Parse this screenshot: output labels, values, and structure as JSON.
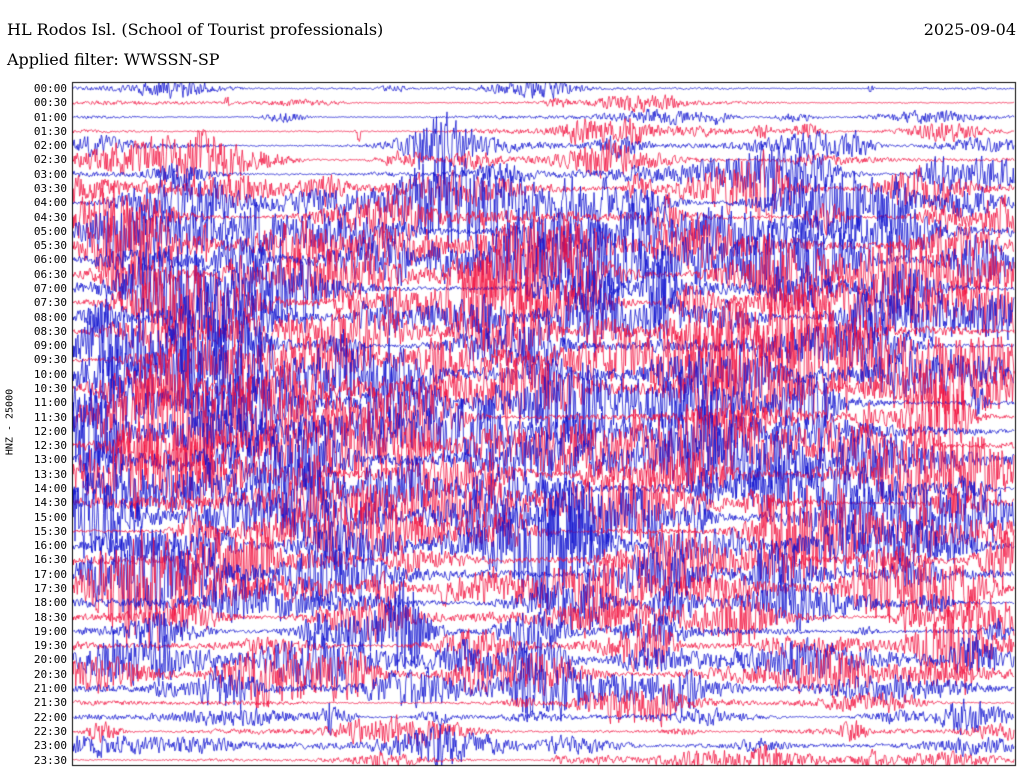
{
  "header": {
    "station": "HL Rodos Isl. (School of Tourist professionals)",
    "date": "2025-09-04",
    "filter": "Applied filter: WWSSN-SP"
  },
  "axis": {
    "scale_label": "HNZ - 25000"
  },
  "chart_data": {
    "type": "helicorder",
    "title": "HL Rodos Isl. (School of Tourist professionals)",
    "date": "2025-09-04",
    "channel": "HNZ",
    "scale": 25000,
    "filter": "WWSSN-SP",
    "minutes_per_line": 30,
    "legend": "none",
    "grid": false,
    "trace_colors": {
      "blue": "#0d10cf",
      "red": "#f2113f"
    },
    "rows": [
      {
        "time": "00:00",
        "color": "blue",
        "activity": 0.1
      },
      {
        "time": "00:30",
        "color": "red",
        "activity": 0.1
      },
      {
        "time": "01:00",
        "color": "blue",
        "activity": 0.09
      },
      {
        "time": "01:30",
        "color": "red",
        "activity": 0.14
      },
      {
        "time": "02:00",
        "color": "blue",
        "activity": 0.22
      },
      {
        "time": "02:30",
        "color": "red",
        "activity": 0.27
      },
      {
        "time": "03:00",
        "color": "blue",
        "activity": 0.3
      },
      {
        "time": "03:30",
        "color": "red",
        "activity": 0.42
      },
      {
        "time": "04:00",
        "color": "blue",
        "activity": 0.52
      },
      {
        "time": "04:30",
        "color": "red",
        "activity": 0.52
      },
      {
        "time": "05:00",
        "color": "blue",
        "activity": 0.62
      },
      {
        "time": "05:30",
        "color": "red",
        "activity": 0.68
      },
      {
        "time": "06:00",
        "color": "blue",
        "activity": 0.73
      },
      {
        "time": "06:30",
        "color": "red",
        "activity": 0.74
      },
      {
        "time": "07:00",
        "color": "blue",
        "activity": 0.78
      },
      {
        "time": "07:30",
        "color": "red",
        "activity": 0.72
      },
      {
        "time": "08:00",
        "color": "blue",
        "activity": 0.66
      },
      {
        "time": "08:30",
        "color": "red",
        "activity": 0.62
      },
      {
        "time": "09:00",
        "color": "blue",
        "activity": 0.66
      },
      {
        "time": "09:30",
        "color": "red",
        "activity": 0.72
      },
      {
        "time": "10:00",
        "color": "blue",
        "activity": 0.72
      },
      {
        "time": "10:30",
        "color": "red",
        "activity": 0.7
      },
      {
        "time": "11:00",
        "color": "blue",
        "activity": 0.72
      },
      {
        "time": "11:30",
        "color": "red",
        "activity": 0.76
      },
      {
        "time": "12:00",
        "color": "blue",
        "activity": 0.72
      },
      {
        "time": "12:30",
        "color": "red",
        "activity": 0.66
      },
      {
        "time": "13:00",
        "color": "blue",
        "activity": 0.62
      },
      {
        "time": "13:30",
        "color": "red",
        "activity": 0.62
      },
      {
        "time": "14:00",
        "color": "blue",
        "activity": 0.62
      },
      {
        "time": "14:30",
        "color": "red",
        "activity": 0.6
      },
      {
        "time": "15:00",
        "color": "blue",
        "activity": 0.58
      },
      {
        "time": "15:30",
        "color": "red",
        "activity": 0.56
      },
      {
        "time": "16:00",
        "color": "blue",
        "activity": 0.56
      },
      {
        "time": "16:30",
        "color": "red",
        "activity": 0.52
      },
      {
        "time": "17:00",
        "color": "blue",
        "activity": 0.52
      },
      {
        "time": "17:30",
        "color": "red",
        "activity": 0.56
      },
      {
        "time": "18:00",
        "color": "blue",
        "activity": 0.5
      },
      {
        "time": "18:30",
        "color": "red",
        "activity": 0.46
      },
      {
        "time": "19:00",
        "color": "blue",
        "activity": 0.42
      },
      {
        "time": "19:30",
        "color": "red",
        "activity": 0.46
      },
      {
        "time": "20:00",
        "color": "blue",
        "activity": 0.46
      },
      {
        "time": "20:30",
        "color": "red",
        "activity": 0.42
      },
      {
        "time": "21:00",
        "color": "blue",
        "activity": 0.36
      },
      {
        "time": "21:30",
        "color": "red",
        "activity": 0.26
      },
      {
        "time": "22:00",
        "color": "blue",
        "activity": 0.22
      },
      {
        "time": "22:30",
        "color": "red",
        "activity": 0.27
      },
      {
        "time": "23:00",
        "color": "blue",
        "activity": 0.22
      },
      {
        "time": "23:30",
        "color": "red",
        "activity": 0.16
      }
    ]
  }
}
